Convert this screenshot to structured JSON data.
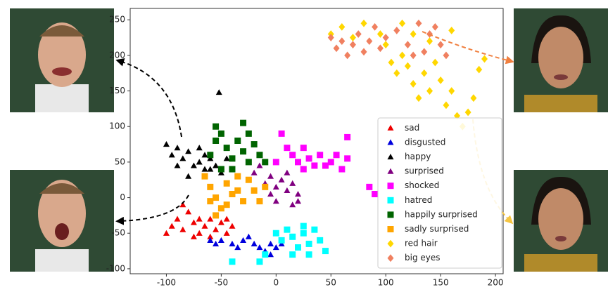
{
  "chart_data": {
    "type": "scatter",
    "xlim": [
      -133,
      207
    ],
    "ylim": [
      -107,
      266
    ],
    "xticks": [
      -100,
      -50,
      0,
      50,
      100,
      150,
      200
    ],
    "yticks": [
      -100,
      -50,
      0,
      50,
      100,
      150,
      200,
      250
    ],
    "legend": "lower right",
    "series": [
      {
        "name": "sad",
        "color": "#ee0000",
        "marker": "triangle",
        "x": [
          -100,
          -95,
          -90,
          -85,
          -80,
          -75,
          -70,
          -65,
          -60,
          -55,
          -50,
          -45,
          -40,
          -85,
          -75,
          -70,
          -60,
          -45
        ],
        "values": [
          -50,
          -40,
          -30,
          -45,
          -20,
          -35,
          -50,
          -40,
          -30,
          -45,
          -35,
          -50,
          -40,
          -10,
          -55,
          -30,
          -55,
          -30
        ]
      },
      {
        "name": "disgusted",
        "color": "#0000dd",
        "marker": "triangle",
        "x": [
          -60,
          -55,
          -50,
          -40,
          -30,
          -20,
          -15,
          -10,
          -5,
          0,
          5,
          -25,
          -35,
          -5
        ],
        "values": [
          -60,
          -65,
          -60,
          -65,
          -60,
          -65,
          -70,
          -75,
          -65,
          -70,
          -65,
          -55,
          -70,
          -80
        ]
      },
      {
        "name": "happy",
        "color": "#000000",
        "marker": "triangle",
        "x": [
          -100,
          -95,
          -90,
          -85,
          -80,
          -75,
          -70,
          -65,
          -60,
          -55,
          -50,
          -80,
          -90,
          -70,
          -60,
          -52,
          -45,
          -65
        ],
        "values": [
          75,
          60,
          70,
          55,
          65,
          45,
          50,
          40,
          55,
          45,
          35,
          30,
          45,
          70,
          40,
          148,
          55,
          60
        ]
      },
      {
        "name": "surprised",
        "color": "#800080",
        "marker": "triangle",
        "x": [
          -25,
          -20,
          -15,
          -10,
          -5,
          0,
          5,
          10,
          15,
          20,
          10,
          0,
          -5,
          15,
          20,
          -15
        ],
        "values": [
          50,
          35,
          45,
          20,
          30,
          15,
          25,
          10,
          20,
          5,
          35,
          -5,
          5,
          -10,
          -5,
          -5
        ]
      },
      {
        "name": "shocked",
        "color": "#ff00ff",
        "marker": "square",
        "x": [
          5,
          10,
          15,
          20,
          25,
          30,
          35,
          40,
          45,
          55,
          60,
          65,
          65,
          0,
          25,
          85,
          90,
          50
        ],
        "values": [
          90,
          70,
          60,
          50,
          40,
          55,
          45,
          60,
          45,
          60,
          40,
          55,
          85,
          50,
          70,
          15,
          5,
          50
        ]
      },
      {
        "name": "hatred",
        "color": "#00ffff",
        "marker": "square",
        "x": [
          0,
          5,
          10,
          15,
          20,
          25,
          30,
          35,
          40,
          45,
          15,
          30,
          -40,
          -15,
          -10,
          25
        ],
        "values": [
          -50,
          -60,
          -45,
          -55,
          -70,
          -50,
          -65,
          -45,
          -60,
          -75,
          -80,
          -80,
          -90,
          -90,
          -80,
          -40
        ]
      },
      {
        "name": "happily surprised",
        "color": "#006400",
        "marker": "square",
        "x": [
          -60,
          -55,
          -50,
          -45,
          -40,
          -35,
          -30,
          -25,
          -20,
          -15,
          -30,
          -50,
          -40,
          -55,
          -25,
          -10
        ],
        "values": [
          60,
          80,
          90,
          70,
          55,
          80,
          65,
          90,
          75,
          60,
          105,
          40,
          40,
          100,
          50,
          50
        ]
      },
      {
        "name": "sadly surprised",
        "color": "#ffa500",
        "marker": "square",
        "x": [
          -65,
          -60,
          -55,
          -50,
          -45,
          -40,
          -35,
          -30,
          -25,
          -20,
          -15,
          -10,
          -55,
          -45,
          -35,
          -60
        ],
        "values": [
          30,
          15,
          0,
          -15,
          20,
          5,
          30,
          -5,
          25,
          10,
          -5,
          15,
          -25,
          -10,
          10,
          -5
        ]
      },
      {
        "name": "red hair",
        "color": "#ffd700",
        "marker": "diamond",
        "x": [
          50,
          60,
          70,
          80,
          95,
          100,
          105,
          110,
          115,
          120,
          125,
          130,
          135,
          140,
          145,
          150,
          155,
          160,
          165,
          170,
          175,
          180,
          185,
          190,
          115,
          125,
          140,
          160
        ],
        "values": [
          230,
          240,
          225,
          245,
          230,
          215,
          190,
          175,
          200,
          185,
          160,
          140,
          175,
          150,
          190,
          165,
          130,
          150,
          115,
          100,
          120,
          140,
          180,
          195,
          245,
          230,
          220,
          235
        ]
      },
      {
        "name": "big eyes",
        "color": "#f08060",
        "marker": "diamond",
        "x": [
          50,
          55,
          60,
          65,
          70,
          75,
          80,
          85,
          90,
          95,
          100,
          110,
          120,
          130,
          135,
          140,
          150,
          155,
          145,
          125
        ],
        "values": [
          225,
          210,
          220,
          200,
          215,
          230,
          205,
          220,
          240,
          210,
          225,
          235,
          215,
          245,
          205,
          230,
          215,
          200,
          240,
          200
        ]
      }
    ]
  }
}
